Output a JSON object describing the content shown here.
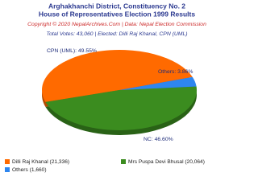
{
  "chart_data": {
    "type": "pie",
    "title": "Arghakhanchi District, Constituency No. 2",
    "subtitle": "House of Representatives Election 1999 Results",
    "copyright": "Copyright © 2020 NepalArchives.Com | Data: Nepal Election Commission",
    "summary": "Total Votes: 43,060 | Elected: Dilli Raj Khanal, CPN (UML)",
    "categories": [
      "Dilli Raj Khanal (21,336)",
      "Mrs Puspa Devi Bhusal (20,064)",
      "Others (1,660)"
    ],
    "values": [
      49.55,
      46.6,
      3.86
    ],
    "value_labels": [
      "CPN (UML): 49.55%",
      "NC: 46.60%",
      "Others: 3.86%"
    ],
    "colors": [
      "#ff6a00",
      "#3b8c1f",
      "#2e86ef"
    ]
  }
}
